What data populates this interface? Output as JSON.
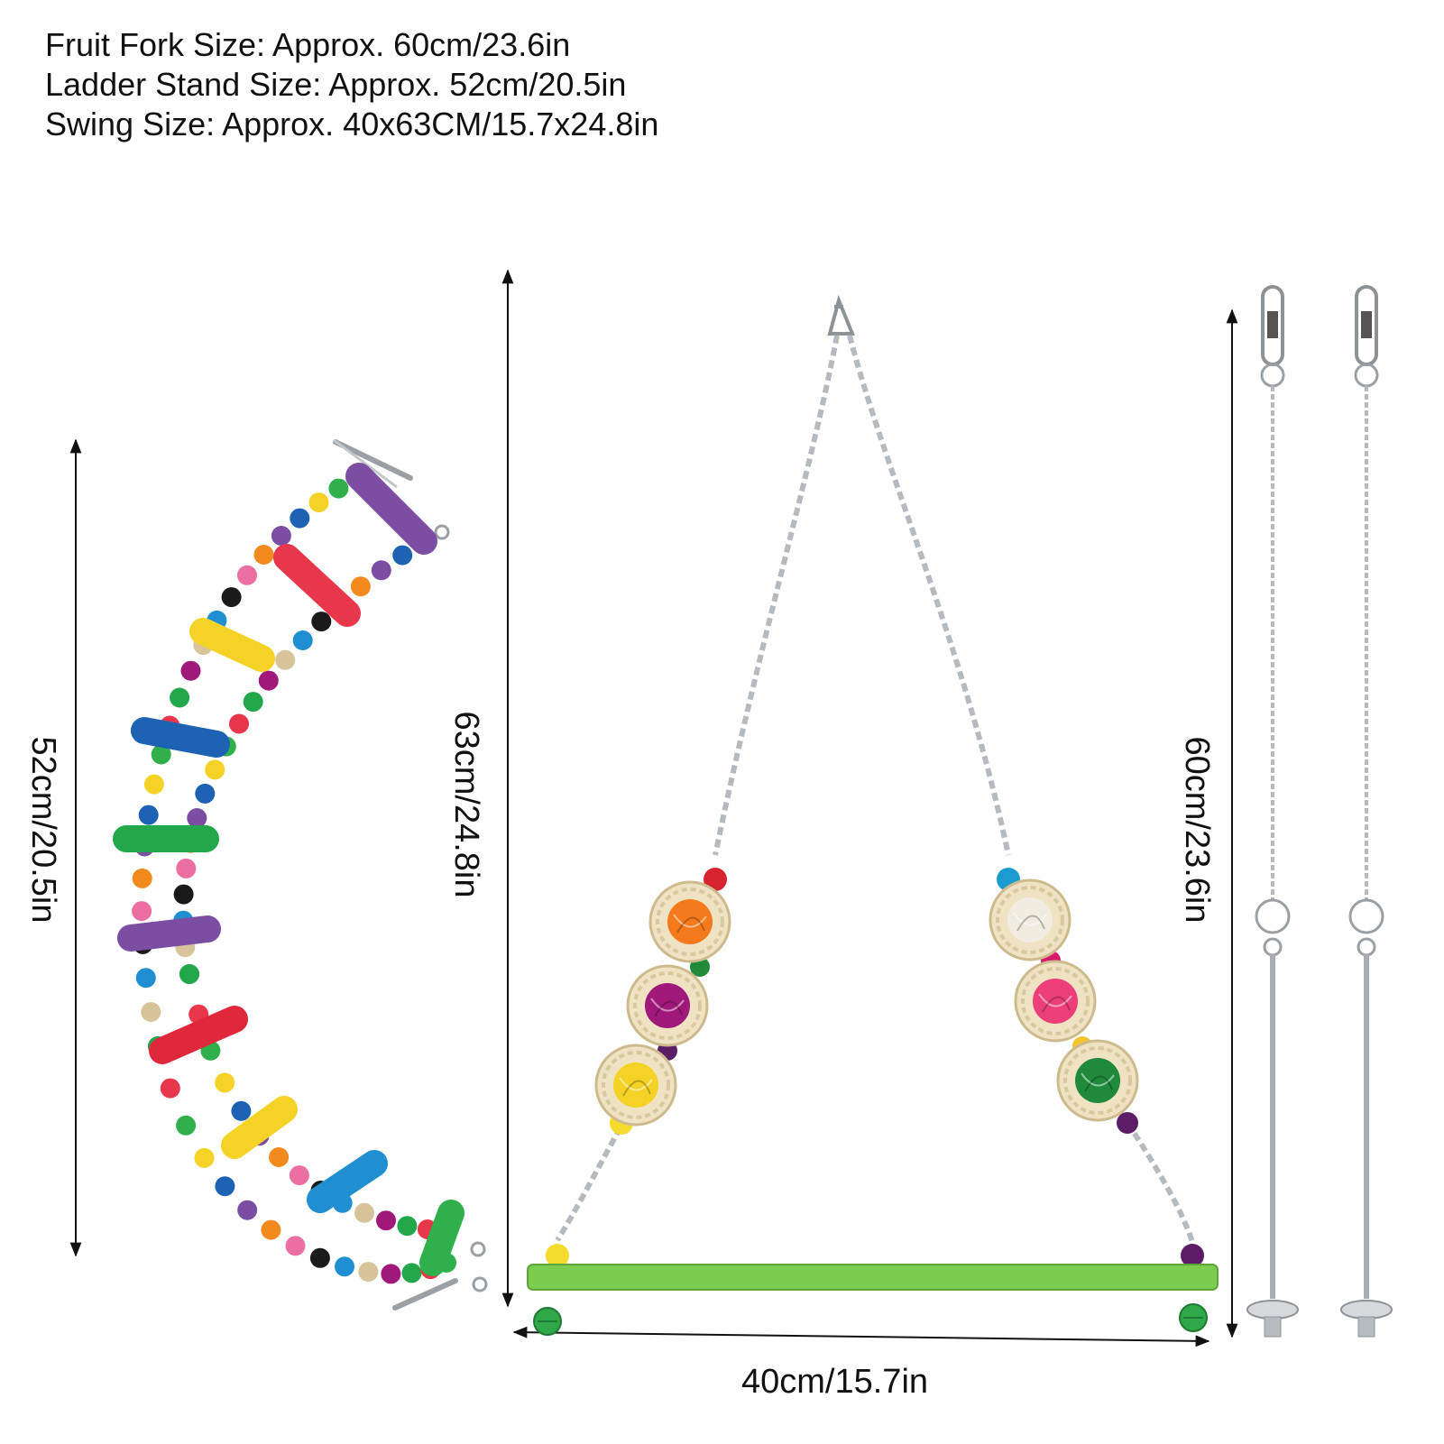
{
  "specs": {
    "fruit_fork": "Fruit Fork Size: Approx. 60cm/23.6in",
    "ladder_stand": "Ladder Stand Size: Approx. 52cm/20.5in",
    "swing": "Swing Size: Approx. 40x63CM/15.7x24.8in"
  },
  "dimensions": {
    "ladder_height": "52cm/20.5in",
    "swing_height": "63cm/24.8in",
    "swing_width": "40cm/15.7in",
    "fork_height": "60cm/23.6in"
  },
  "colors": {
    "perch_green": "#7ccc4f",
    "ladder_rungs": [
      "#7b4ea3",
      "#e8374a",
      "#f4d326",
      "#1e63b3",
      "#22a84a",
      "#7b4ea3",
      "#e0283c",
      "#f4d326",
      "#1f8fd1",
      "#2fb04c"
    ],
    "ball_colors": [
      "#f47a1c",
      "#a0197a",
      "#f4d326",
      "#f0ece0",
      "#ec3f79",
      "#1f8a3b"
    ]
  }
}
